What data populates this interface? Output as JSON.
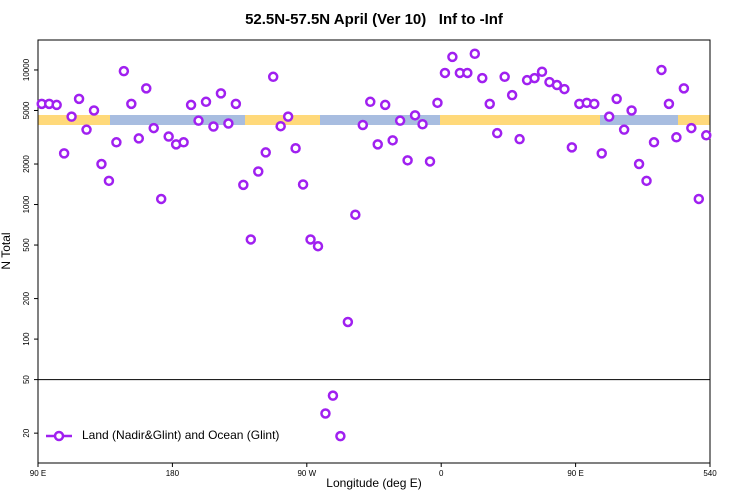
{
  "chart_data": {
    "type": "scatter",
    "title": "52.5N-57.5N April (Ver 10)   Inf to -Inf",
    "x_label": "Longitude (deg E)",
    "y_label": "N Total",
    "log_y": true,
    "break_at": 50,
    "xlim": [
      90,
      540
    ],
    "ylim": [
      12,
      16700
    ],
    "xticks": [
      {
        "value": 90,
        "label": "90 E"
      },
      180,
      {
        "value": 270,
        "label": "90 W"
      },
      {
        "value": 360,
        "label": "0"
      },
      {
        "value": 450,
        "label": "90 E"
      },
      540
    ],
    "yticks": [
      20,
      50,
      100,
      200,
      500,
      1000,
      2000,
      5000,
      10000
    ],
    "legend": "bottom-left",
    "series": [
      {
        "name": "Land (Nadir&Glint) and Ocean (Glint)",
        "color": "#a020f0",
        "x": [
          92.5,
          97.5,
          102.5,
          107.5,
          112.5,
          117.5,
          122.5,
          127.5,
          132.5,
          137.5,
          142.5,
          147.5,
          152.5,
          157.5,
          162.5,
          167.5,
          172.5,
          177.5,
          182.5,
          187.5,
          192.5,
          197.5,
          202.5,
          207.5,
          212.5,
          217.5,
          222.5,
          227.5,
          232.5,
          237.5,
          242.5,
          247.5,
          252.5,
          257.5,
          262.5,
          267.5,
          272.5,
          277.5,
          282.5,
          287.5,
          292.5,
          297.5,
          302.5,
          307.5,
          312.5,
          317.5,
          322.5,
          327.5,
          332.5,
          337.5,
          342.5,
          347.5,
          352.5,
          357.5,
          362.5,
          367.5,
          372.5,
          377.5,
          382.5,
          387.5,
          392.5,
          397.5,
          402.5,
          407.5,
          412.5,
          417.5,
          422.5,
          427.5,
          432.5,
          437.5,
          442.5,
          447.5,
          452.5,
          457.5,
          462.5,
          467.5,
          472.5,
          477.5,
          482.5,
          487.5,
          492.5,
          497.5,
          502.5,
          507.5,
          512.5,
          517.5,
          522.5,
          527.5,
          532.5,
          537.5
        ],
        "values": [
          5600,
          5600,
          5500,
          2400,
          4500,
          6100,
          3600,
          5000,
          2000,
          1500,
          2900,
          9800,
          5600,
          3100,
          7300,
          3700,
          1100,
          3200,
          2800,
          2900,
          5500,
          4200,
          5800,
          3800,
          6700,
          4000,
          5600,
          1400,
          550,
          1760,
          2440,
          8900,
          3820,
          4500,
          2620,
          1410,
          550,
          490,
          28,
          38,
          19,
          134,
          840,
          3900,
          5800,
          2800,
          5500,
          3000,
          4200,
          2130,
          4600,
          3950,
          2090,
          5700,
          9500,
          12500,
          9500,
          9500,
          13200,
          8700,
          5600,
          3390,
          8900,
          6500,
          3060,
          8400,
          8700,
          9700,
          8130,
          7730,
          7210,
          2660,
          5600,
          5700,
          5600,
          2400,
          4500,
          6100,
          3600,
          5000,
          2000,
          1500,
          2900,
          10000,
          5600,
          3160,
          7300,
          3700,
          1100,
          3270
        ]
      }
    ]
  }
}
